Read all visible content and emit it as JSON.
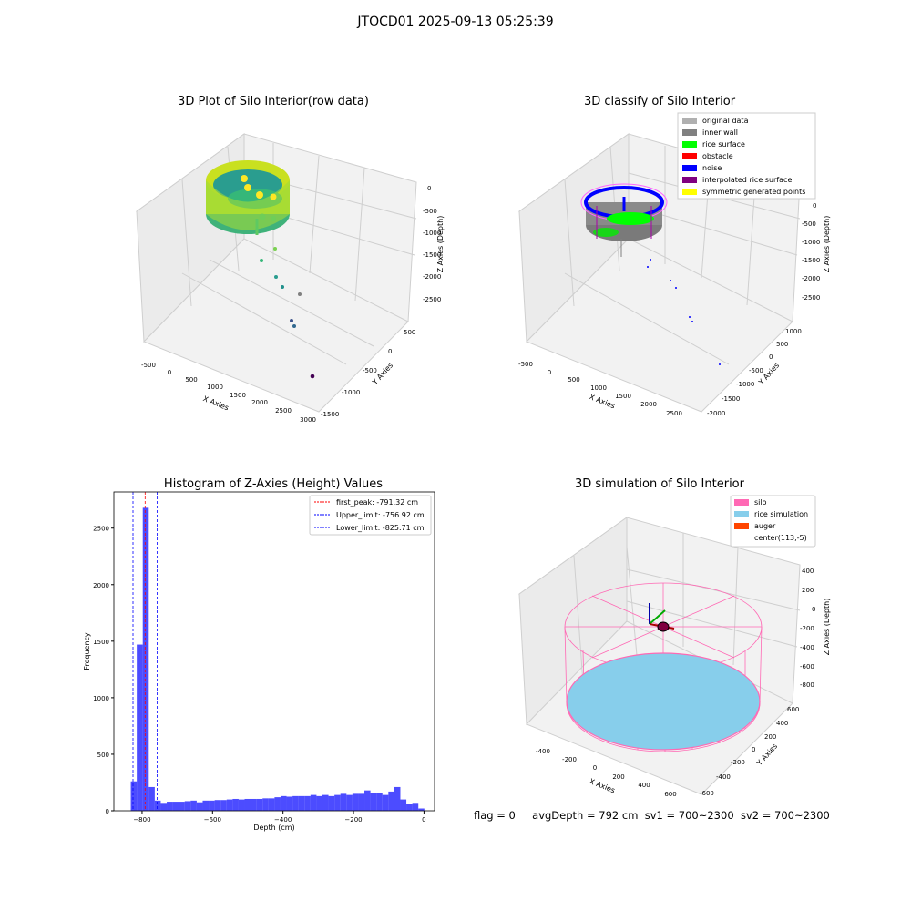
{
  "figure": {
    "suptitle": "JTOCD01 2025-09-13 05:25:39",
    "footer": {
      "flag": "flag = 0",
      "avg_depth": "avgDepth = 792 cm",
      "sv1": "sv1 = 700~2300",
      "sv2": "sv2 = 700~2300"
    }
  },
  "chart_data": [
    {
      "type": "scatter",
      "title": "3D Plot of Silo Interior(row data)",
      "xlabel": "X Axies",
      "ylabel": "Y Axies",
      "zlabel": "Z Axies (Depth)",
      "x_ticks": [
        "-500",
        "0",
        "500",
        "1000",
        "1500",
        "2000",
        "2500",
        "3000"
      ],
      "y_ticks": [
        "-1500",
        "-1000",
        "-500",
        "0",
        "500"
      ],
      "z_ticks": [
        "0",
        "-500",
        "-1000",
        "-1500",
        "-2000",
        "-2500"
      ],
      "colormap": [
        "#fde725",
        "#5ec962",
        "#21918c",
        "#3b528b",
        "#440154"
      ],
      "outlier_points": [
        {
          "x": 1000,
          "y": 200,
          "z": -1300
        },
        {
          "x": 900,
          "y": 100,
          "z": -1500
        },
        {
          "x": 1250,
          "y": -50,
          "z": -1700
        },
        {
          "x": 1300,
          "y": -150,
          "z": -1900
        },
        {
          "x": 1550,
          "y": -200,
          "z": -2050
        },
        {
          "x": 1700,
          "y": -400,
          "z": -2350
        },
        {
          "x": 1800,
          "y": -500,
          "z": -2400
        },
        {
          "x": 2800,
          "y": -1300,
          "z": -2600
        }
      ]
    },
    {
      "type": "scatter",
      "title": "3D classify of Silo Interior",
      "xlabel": "X Axies",
      "ylabel": "Y Axies",
      "zlabel": "Z Axies (Depth)",
      "x_ticks": [
        "-500",
        "0",
        "500",
        "1000",
        "1500",
        "2000",
        "2500"
      ],
      "y_ticks": [
        "-2000",
        "-1500",
        "-1000",
        "-500",
        "0",
        "500",
        "1000"
      ],
      "z_ticks": [
        "0",
        "-500",
        "-1000",
        "-1500",
        "-2000",
        "-2500"
      ],
      "legend_position": "top-right",
      "legend": [
        {
          "label": "original data",
          "color": "#b0b0b0"
        },
        {
          "label": "inner wall",
          "color": "#808080"
        },
        {
          "label": "rice surface",
          "color": "#00ff00"
        },
        {
          "label": "obstacle",
          "color": "#ff0000"
        },
        {
          "label": "noise",
          "color": "#0000ff"
        },
        {
          "label": "interpolated rice surface",
          "color": "#800080"
        },
        {
          "label": "symmetric generated points",
          "color": "#ffff00"
        }
      ]
    },
    {
      "type": "bar",
      "title": "Histogram of Z-Axies (Height) Values",
      "xlabel": "Depth (cm)",
      "ylabel": "Frequency",
      "xlim": [
        -880,
        30
      ],
      "ylim": [
        0,
        2820
      ],
      "x_ticks": [
        -800,
        -600,
        -400,
        -200,
        0
      ],
      "y_ticks": [
        0,
        500,
        1000,
        1500,
        2000,
        2500
      ],
      "bar_color": "#0000ff",
      "bin_width": 17,
      "bin_starts": [
        -832,
        -815,
        -798,
        -781,
        -764,
        -747,
        -730,
        -713,
        -696,
        -679,
        -662,
        -645,
        -628,
        -611,
        -594,
        -577,
        -560,
        -543,
        -526,
        -509,
        -492,
        -475,
        -458,
        -441,
        -424,
        -407,
        -390,
        -373,
        -356,
        -339,
        -322,
        -305,
        -288,
        -271,
        -254,
        -237,
        -220,
        -203,
        -186,
        -169,
        -152,
        -135,
        -118,
        -101,
        -84,
        -67,
        -50,
        -33,
        -16
      ],
      "values": [
        260,
        1470,
        2680,
        210,
        90,
        70,
        80,
        80,
        80,
        85,
        90,
        75,
        90,
        90,
        95,
        95,
        100,
        105,
        100,
        105,
        105,
        105,
        110,
        110,
        120,
        130,
        125,
        130,
        130,
        130,
        140,
        130,
        140,
        130,
        140,
        150,
        140,
        150,
        150,
        180,
        160,
        160,
        140,
        170,
        210,
        100,
        60,
        70,
        20
      ],
      "lines": [
        {
          "label": "first_peak: -791.32 cm",
          "value": -791.32,
          "color": "#ff0000"
        },
        {
          "label": "Upper_limit: -756.92 cm",
          "value": -756.92,
          "color": "#0000ff"
        },
        {
          "label": "Lower_limit: -825.71 cm",
          "value": -825.71,
          "color": "#0000ff"
        }
      ],
      "legend_position": "top-right"
    },
    {
      "type": "surface",
      "title": "3D simulation of Silo Interior",
      "xlabel": "X Axies",
      "ylabel": "Y Axies",
      "zlabel": "Z Axies (Depth)",
      "x_ticks": [
        "-400",
        "-200",
        "0",
        "200",
        "400",
        "600"
      ],
      "y_ticks": [
        "-600",
        "-400",
        "-200",
        "0",
        "200",
        "400",
        "600"
      ],
      "z_ticks": [
        "400",
        "200",
        "0",
        "-200",
        "-400",
        "-600",
        "-800"
      ],
      "legend_position": "top-right",
      "legend": [
        {
          "label": "silo",
          "color": "#ff69b4"
        },
        {
          "label": "rice simulation",
          "color": "#87ceeb"
        },
        {
          "label": "auger",
          "color": "#ff4500"
        },
        {
          "label": "center(113,-5)",
          "color": "none"
        }
      ]
    }
  ]
}
